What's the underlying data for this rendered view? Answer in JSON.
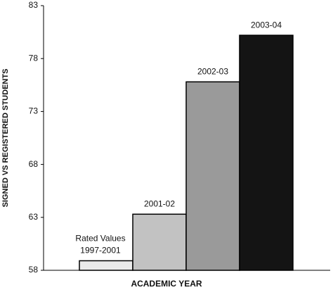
{
  "chart_data": {
    "type": "bar",
    "x_label": "ACADEMIC YEAR",
    "y_label": "SIGNED VS REGISTERED STUDENTS",
    "categories": [
      [
        "Rated Values",
        "1997-2001"
      ],
      [
        "2001-02"
      ],
      [
        "2002-03"
      ],
      [
        "2003-04"
      ]
    ],
    "values": [
      58.9,
      63.3,
      75.8,
      80.2
    ],
    "colors": [
      "#ebebeb",
      "#c2c2c2",
      "#9a9a9a",
      "#141414"
    ],
    "ylim": [
      58,
      83
    ],
    "yticks": [
      58,
      63,
      68,
      73,
      78,
      83
    ]
  }
}
